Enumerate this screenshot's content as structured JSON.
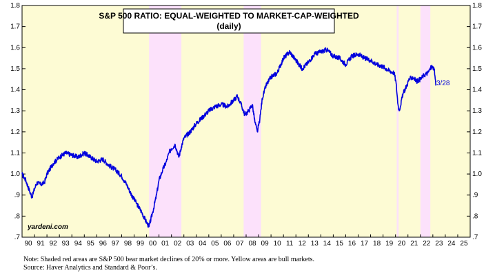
{
  "chart_data": {
    "type": "line",
    "title": "S&P 500 RATIO: EQUAL-WEIGHTED TO MARKET-CAP-WEIGHTED",
    "subtitle": "(daily)",
    "xlabel": "",
    "ylabel": "",
    "xlim": [
      1990,
      2026
    ],
    "ylim": [
      0.7,
      1.8
    ],
    "y_ticks": [
      0.7,
      0.8,
      0.9,
      1.0,
      1.1,
      1.2,
      1.3,
      1.4,
      1.5,
      1.6,
      1.7,
      1.8
    ],
    "y_tick_labels": [
      ".7",
      ".8",
      ".9",
      "1.0",
      "1.1",
      "1.2",
      "1.3",
      "1.4",
      "1.5",
      "1.6",
      "1.7",
      "1.8"
    ],
    "x_tick_labels": [
      "90",
      "91",
      "92",
      "93",
      "94",
      "95",
      "96",
      "97",
      "98",
      "99",
      "00",
      "01",
      "02",
      "03",
      "04",
      "05",
      "06",
      "07",
      "08",
      "09",
      "10",
      "11",
      "12",
      "13",
      "14",
      "15",
      "16",
      "17",
      "18",
      "19",
      "20",
      "21",
      "22",
      "23",
      "24",
      "25"
    ],
    "grid": false,
    "line_color": "#0000dd",
    "bull_color": "#fdfbd4",
    "bear_color": "#fce1fb",
    "bear_markets": [
      {
        "start": 2000.2,
        "end": 2002.8
      },
      {
        "start": 2007.8,
        "end": 2009.2
      },
      {
        "start": 2020.1,
        "end": 2020.25
      },
      {
        "start": 2022.0,
        "end": 2022.8
      }
    ],
    "series": [
      {
        "name": "Ratio",
        "x": [
          1990.0,
          1990.3,
          1990.6,
          1990.8,
          1991.0,
          1991.2,
          1991.5,
          1991.8,
          1992.0,
          1992.5,
          1993.0,
          1993.5,
          1994.0,
          1994.5,
          1995.0,
          1995.5,
          1996.0,
          1996.5,
          1997.0,
          1997.5,
          1998.0,
          1998.4,
          1998.8,
          1999.2,
          1999.6,
          2000.0,
          2000.2,
          2000.5,
          2000.8,
          2001.0,
          2001.3,
          2001.6,
          2001.8,
          2002.0,
          2002.3,
          2002.6,
          2002.8,
          2003.0,
          2003.5,
          2004.0,
          2004.5,
          2005.0,
          2005.5,
          2006.0,
          2006.5,
          2007.0,
          2007.3,
          2007.6,
          2007.9,
          2008.2,
          2008.5,
          2008.7,
          2008.9,
          2009.1,
          2009.3,
          2009.6,
          2010.0,
          2010.5,
          2011.0,
          2011.5,
          2012.0,
          2012.5,
          2013.0,
          2013.5,
          2014.0,
          2014.5,
          2015.0,
          2015.5,
          2016.0,
          2016.5,
          2017.0,
          2017.5,
          2018.0,
          2018.5,
          2019.0,
          2019.5,
          2019.9,
          2020.05,
          2020.2,
          2020.3,
          2020.6,
          2020.9,
          2021.1,
          2021.4,
          2021.7,
          2022.0,
          2022.3,
          2022.6,
          2022.9,
          2023.1,
          2023.24
        ],
        "values": [
          1.0,
          0.97,
          0.92,
          0.89,
          0.93,
          0.96,
          0.95,
          0.96,
          1.0,
          1.05,
          1.08,
          1.1,
          1.09,
          1.08,
          1.1,
          1.08,
          1.06,
          1.07,
          1.04,
          1.02,
          0.99,
          0.95,
          0.9,
          0.86,
          0.82,
          0.77,
          0.75,
          0.82,
          0.9,
          0.97,
          1.02,
          1.06,
          1.1,
          1.12,
          1.14,
          1.08,
          1.13,
          1.17,
          1.2,
          1.24,
          1.27,
          1.3,
          1.32,
          1.33,
          1.32,
          1.35,
          1.37,
          1.33,
          1.28,
          1.3,
          1.33,
          1.25,
          1.2,
          1.26,
          1.36,
          1.42,
          1.46,
          1.48,
          1.55,
          1.58,
          1.54,
          1.5,
          1.53,
          1.57,
          1.58,
          1.59,
          1.56,
          1.55,
          1.52,
          1.56,
          1.57,
          1.55,
          1.54,
          1.52,
          1.51,
          1.49,
          1.48,
          1.43,
          1.33,
          1.3,
          1.38,
          1.42,
          1.45,
          1.46,
          1.44,
          1.45,
          1.47,
          1.48,
          1.51,
          1.5,
          1.42
        ]
      }
    ],
    "end_label": "3/28",
    "watermark": "yardeni.com",
    "notes": [
      "Note: Shaded red areas are S&P 500 bear market declines of 20% or more. Yellow areas are bull markets.",
      "Source: Haver Analytics and Standard & Poor’s."
    ]
  }
}
